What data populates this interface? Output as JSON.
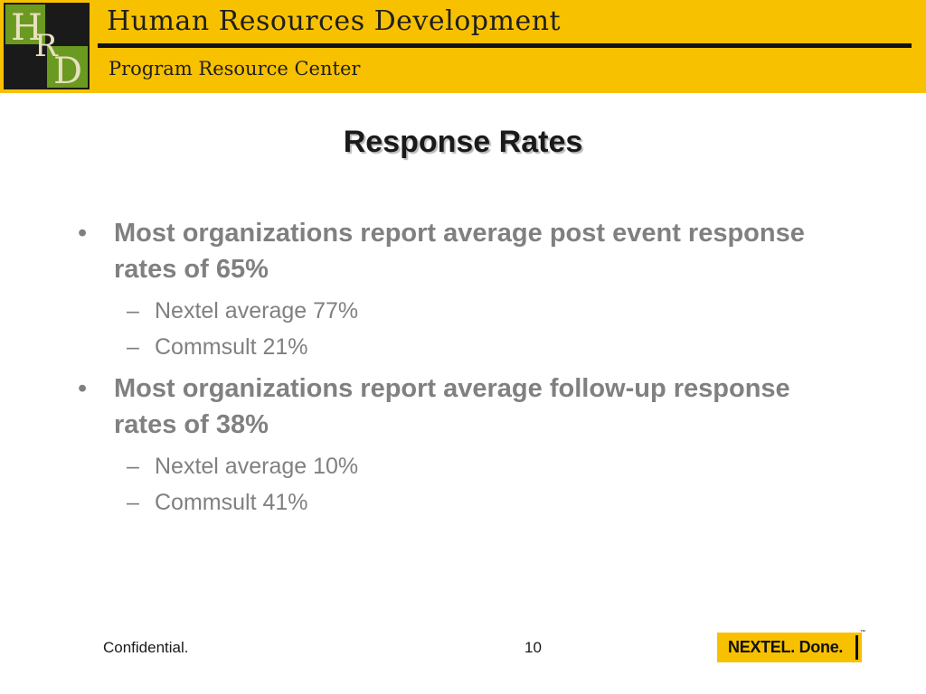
{
  "header": {
    "logo_letters": [
      "H",
      "R",
      "D"
    ],
    "title": "Human Resources Development",
    "subtitle": "Program Resource Center",
    "accent_color": "#f8c100",
    "logo_green": "#6a9a1f"
  },
  "slide": {
    "title": "Response Rates",
    "bullets": [
      {
        "text": "Most organizations report average post event response rates of 65%",
        "subs": [
          "Nextel average 77%",
          "Commsult 21%"
        ]
      },
      {
        "text": "Most organizations report average follow-up response rates of 38%",
        "subs": [
          "Nextel average 10%",
          "Commsult 41%"
        ]
      }
    ],
    "bullet_glyph": "•",
    "sub_glyph": "–"
  },
  "footer": {
    "confidential": "Confidential.",
    "page_number": "10",
    "brand_text": "NEXTEL. Done.",
    "trademark": "™"
  }
}
